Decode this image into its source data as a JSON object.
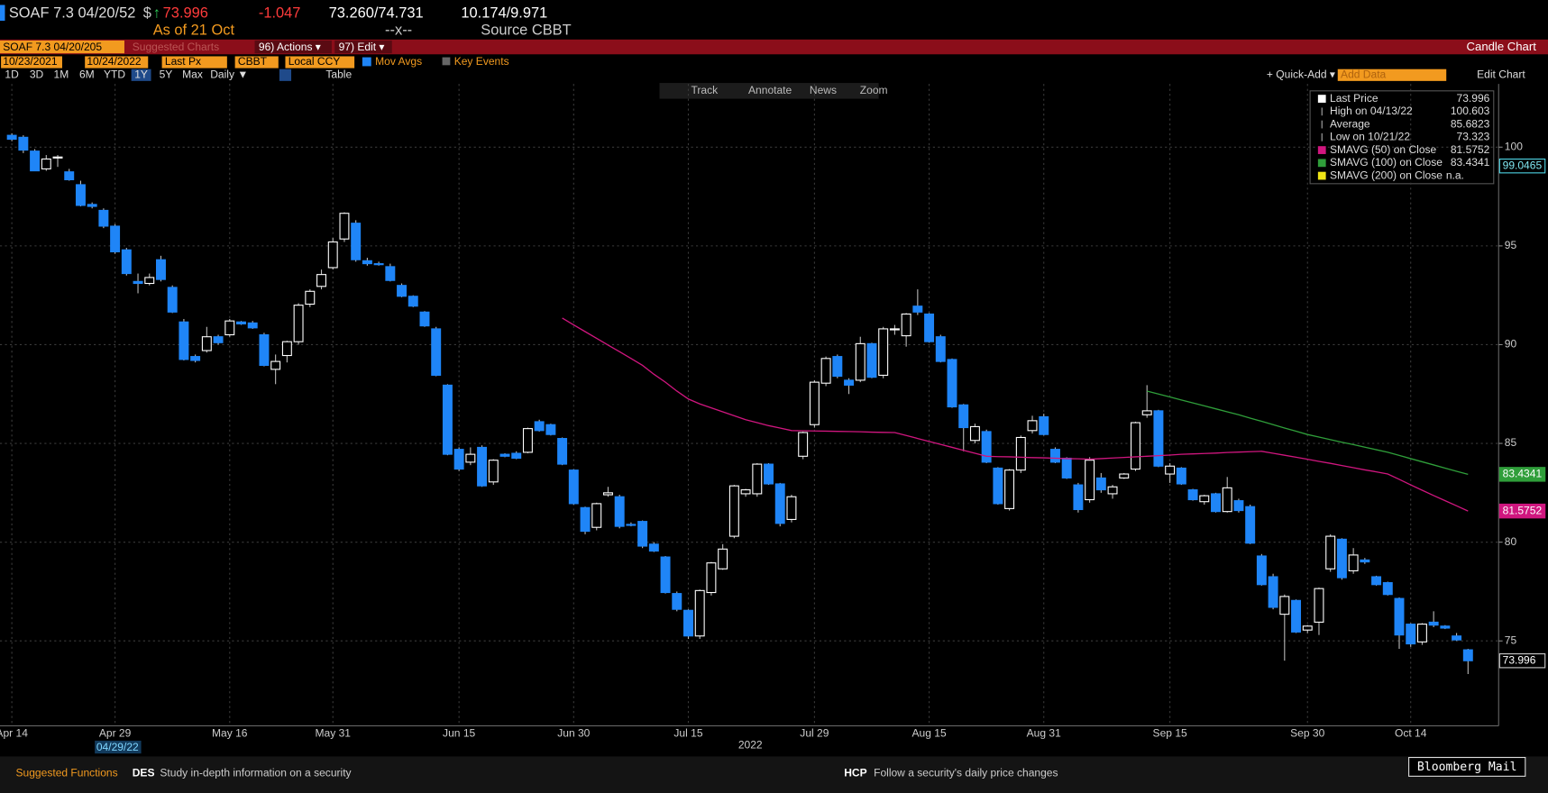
{
  "header": {
    "security": "SOAF 7.3 04/20/52",
    "currency": "$",
    "arrow": "↑",
    "last_price": 73.996,
    "change": -1.047,
    "bid_ask": "73.260/74.731",
    "yield": "10.174/9.971",
    "as_of": "As of 21 Oct",
    "mark": "--x--",
    "source": "Source CBBT"
  },
  "menu": {
    "ticker_input": "SOAF 7.3 04/20/205",
    "suggested": "Suggested Charts",
    "actions": "96) Actions ▾",
    "edit": "97) Edit ▾",
    "chart_type": "Candle Chart"
  },
  "controls": {
    "start": "10/23/2021",
    "end": "10/24/2022",
    "field": "Last Px",
    "source": "CBBT",
    "currency": "Local CCY",
    "mov_avgs": "Mov Avgs",
    "key_events": "Key Events",
    "periods": [
      "1D",
      "3D",
      "1M",
      "6M",
      "YTD",
      "1Y",
      "5Y",
      "Max"
    ],
    "selected_period": "1Y",
    "frequency": "Daily ▼",
    "table": "Table",
    "quick_add": "+ Quick-Add ▾",
    "add_data": "Add Data",
    "edit_chart": "Edit Chart",
    "tools": [
      "Track",
      "Annotate",
      "News",
      "Zoom"
    ]
  },
  "chart_data": {
    "type": "candlestick",
    "categories": [
      "Apr 14",
      null,
      null,
      null,
      null,
      null,
      null,
      null,
      null,
      "Apr 29",
      null,
      null,
      null,
      null,
      null,
      null,
      null,
      null,
      null,
      "May 16",
      null,
      null,
      null,
      null,
      null,
      null,
      null,
      null,
      "May 31",
      null,
      null,
      null,
      null,
      null,
      null,
      null,
      null,
      null,
      null,
      "Jun 15",
      null,
      null,
      null,
      null,
      null,
      null,
      null,
      null,
      null,
      "Jun 30",
      null,
      null,
      null,
      null,
      null,
      null,
      null,
      null,
      null,
      "Jul 15",
      null,
      null,
      null,
      null,
      null,
      null,
      null,
      null,
      null,
      null,
      "Jul 29",
      null,
      null,
      null,
      null,
      null,
      null,
      null,
      null,
      null,
      "Aug 15",
      null,
      null,
      null,
      null,
      null,
      null,
      null,
      null,
      null,
      "Aug 31",
      null,
      null,
      null,
      null,
      null,
      null,
      null,
      null,
      null,
      null,
      "Sep 15",
      null,
      null,
      null,
      null,
      null,
      null,
      null,
      null,
      null,
      null,
      null,
      "Sep 30",
      null,
      null,
      null,
      null,
      null,
      null,
      null,
      null,
      "Oct 14",
      null,
      null,
      null,
      null,
      null
    ],
    "ohlc": [
      [
        100.6,
        100.7,
        100.3,
        100.4
      ],
      [
        100.5,
        100.6,
        99.7,
        99.85
      ],
      [
        99.8,
        99.9,
        98.8,
        98.8
      ],
      [
        98.9,
        99.6,
        98.8,
        99.4
      ],
      [
        99.45,
        99.6,
        99.0,
        99.5
      ],
      [
        98.75,
        98.9,
        98.3,
        98.35
      ],
      [
        98.1,
        98.3,
        97.0,
        97.05
      ],
      [
        97.1,
        97.2,
        96.9,
        97.0
      ],
      [
        96.8,
        96.9,
        95.9,
        96.0
      ],
      [
        96.0,
        96.1,
        94.6,
        94.7
      ],
      [
        94.8,
        94.9,
        93.5,
        93.6
      ],
      [
        93.2,
        93.6,
        92.6,
        93.1
      ],
      [
        93.1,
        93.6,
        93.0,
        93.4
      ],
      [
        94.3,
        94.5,
        93.2,
        93.3
      ],
      [
        92.9,
        93.0,
        91.6,
        91.65
      ],
      [
        91.15,
        91.3,
        89.2,
        89.25
      ],
      [
        89.4,
        89.5,
        89.1,
        89.2
      ],
      [
        89.7,
        90.9,
        89.6,
        90.4
      ],
      [
        90.4,
        90.5,
        90.0,
        90.1
      ],
      [
        90.5,
        91.3,
        90.4,
        91.2
      ],
      [
        91.15,
        91.2,
        91.0,
        91.05
      ],
      [
        91.1,
        91.2,
        90.8,
        90.85
      ],
      [
        90.5,
        90.6,
        88.9,
        88.95
      ],
      [
        88.75,
        89.5,
        88.0,
        89.15
      ],
      [
        89.45,
        90.2,
        89.1,
        90.15
      ],
      [
        90.15,
        92.1,
        90.0,
        92.0
      ],
      [
        92.05,
        92.8,
        91.9,
        92.7
      ],
      [
        92.95,
        93.8,
        92.8,
        93.55
      ],
      [
        93.9,
        95.4,
        93.8,
        95.2
      ],
      [
        95.35,
        96.7,
        95.2,
        96.65
      ],
      [
        96.15,
        96.3,
        94.2,
        94.3
      ],
      [
        94.25,
        94.4,
        94.0,
        94.1
      ],
      [
        94.1,
        94.2,
        94.0,
        94.05
      ],
      [
        93.95,
        94.1,
        93.2,
        93.25
      ],
      [
        93.0,
        93.1,
        92.4,
        92.45
      ],
      [
        92.45,
        92.5,
        91.9,
        91.95
      ],
      [
        91.65,
        91.7,
        90.9,
        90.95
      ],
      [
        90.8,
        90.9,
        88.4,
        88.45
      ],
      [
        87.95,
        88.0,
        84.4,
        84.45
      ],
      [
        84.7,
        84.8,
        83.6,
        83.7
      ],
      [
        84.05,
        84.8,
        83.9,
        84.45
      ],
      [
        84.8,
        84.9,
        82.8,
        82.85
      ],
      [
        83.05,
        84.2,
        82.9,
        84.15
      ],
      [
        84.45,
        84.5,
        84.3,
        84.35
      ],
      [
        84.5,
        84.6,
        84.2,
        84.25
      ],
      [
        84.55,
        85.8,
        84.5,
        85.75
      ],
      [
        86.1,
        86.2,
        85.6,
        85.65
      ],
      [
        85.95,
        86.0,
        85.4,
        85.45
      ],
      [
        85.25,
        85.3,
        83.9,
        83.95
      ],
      [
        83.65,
        83.7,
        81.9,
        81.95
      ],
      [
        81.75,
        81.8,
        80.4,
        80.55
      ],
      [
        80.75,
        82.0,
        80.6,
        81.95
      ],
      [
        82.4,
        82.8,
        82.3,
        82.5
      ],
      [
        82.3,
        82.4,
        80.7,
        80.8
      ],
      [
        80.9,
        81.0,
        80.8,
        80.85
      ],
      [
        81.05,
        81.1,
        79.7,
        79.8
      ],
      [
        79.9,
        80.0,
        79.5,
        79.55
      ],
      [
        79.25,
        79.3,
        77.4,
        77.45
      ],
      [
        77.4,
        77.5,
        76.5,
        76.6
      ],
      [
        76.55,
        76.6,
        75.1,
        75.25
      ],
      [
        75.25,
        77.6,
        75.1,
        77.55
      ],
      [
        77.45,
        79.0,
        77.3,
        78.95
      ],
      [
        78.65,
        79.9,
        78.6,
        79.65
      ],
      [
        80.3,
        82.9,
        80.2,
        82.85
      ],
      [
        82.45,
        82.7,
        82.3,
        82.65
      ],
      [
        82.45,
        84.0,
        82.3,
        83.95
      ],
      [
        83.95,
        84.0,
        82.9,
        82.95
      ],
      [
        82.95,
        83.0,
        80.8,
        80.95
      ],
      [
        81.15,
        82.4,
        81.0,
        82.3
      ],
      [
        84.35,
        85.6,
        84.2,
        85.55
      ],
      [
        85.95,
        88.2,
        85.8,
        88.1
      ],
      [
        88.05,
        89.4,
        87.9,
        89.3
      ],
      [
        89.4,
        89.5,
        88.3,
        88.4
      ],
      [
        88.2,
        88.3,
        87.5,
        87.95
      ],
      [
        88.2,
        90.4,
        88.1,
        90.05
      ],
      [
        90.05,
        90.1,
        88.3,
        88.35
      ],
      [
        88.45,
        90.9,
        88.3,
        90.8
      ],
      [
        90.75,
        91.0,
        90.5,
        90.8
      ],
      [
        90.45,
        91.6,
        89.9,
        91.55
      ],
      [
        91.95,
        92.8,
        91.5,
        91.65
      ],
      [
        91.55,
        91.6,
        90.1,
        90.15
      ],
      [
        90.4,
        90.5,
        89.1,
        89.15
      ],
      [
        89.25,
        89.3,
        86.8,
        86.85
      ],
      [
        86.95,
        87.0,
        84.6,
        85.8
      ],
      [
        85.15,
        86.0,
        85.0,
        85.85
      ],
      [
        85.6,
        85.7,
        84.0,
        84.05
      ],
      [
        83.75,
        83.8,
        81.9,
        81.95
      ],
      [
        81.7,
        83.7,
        81.6,
        83.65
      ],
      [
        83.65,
        85.4,
        83.5,
        85.3
      ],
      [
        85.65,
        86.4,
        85.5,
        86.15
      ],
      [
        86.35,
        86.5,
        85.4,
        85.45
      ],
      [
        84.7,
        84.8,
        84.0,
        84.05
      ],
      [
        84.25,
        84.3,
        83.2,
        83.25
      ],
      [
        82.9,
        83.0,
        81.5,
        81.65
      ],
      [
        82.15,
        84.3,
        82.0,
        84.15
      ],
      [
        83.25,
        83.5,
        82.5,
        82.65
      ],
      [
        82.45,
        82.9,
        82.2,
        82.8
      ],
      [
        83.25,
        83.5,
        83.2,
        83.45
      ],
      [
        83.7,
        86.1,
        83.6,
        86.05
      ],
      [
        86.45,
        87.95,
        86.3,
        86.65
      ],
      [
        86.65,
        86.7,
        83.8,
        83.85
      ],
      [
        83.45,
        84.0,
        83.0,
        83.85
      ],
      [
        83.75,
        83.8,
        82.9,
        82.95
      ],
      [
        82.65,
        82.7,
        82.1,
        82.15
      ],
      [
        82.05,
        82.4,
        81.9,
        82.35
      ],
      [
        82.45,
        82.5,
        81.5,
        81.55
      ],
      [
        81.55,
        83.3,
        81.5,
        82.75
      ],
      [
        82.1,
        82.2,
        81.5,
        81.6
      ],
      [
        81.8,
        81.9,
        79.9,
        79.95
      ],
      [
        79.3,
        79.4,
        77.8,
        77.85
      ],
      [
        78.25,
        78.4,
        76.6,
        76.7
      ],
      [
        76.35,
        77.35,
        74.0,
        77.25
      ],
      [
        77.05,
        77.1,
        75.4,
        75.45
      ],
      [
        75.55,
        75.8,
        75.4,
        75.75
      ],
      [
        75.95,
        77.7,
        75.3,
        77.65
      ],
      [
        78.65,
        80.4,
        78.5,
        80.3
      ],
      [
        80.15,
        80.2,
        78.1,
        78.2
      ],
      [
        78.55,
        79.7,
        78.4,
        79.35
      ],
      [
        79.1,
        79.2,
        78.9,
        79.0
      ],
      [
        78.25,
        78.3,
        77.8,
        77.85
      ],
      [
        77.95,
        78.0,
        77.3,
        77.35
      ],
      [
        77.15,
        77.2,
        74.6,
        75.3
      ],
      [
        75.85,
        75.9,
        74.7,
        74.85
      ],
      [
        74.95,
        75.9,
        74.8,
        75.85
      ],
      [
        75.95,
        76.5,
        75.7,
        75.8
      ],
      [
        75.75,
        75.8,
        75.6,
        75.65
      ],
      [
        75.25,
        75.4,
        75.0,
        75.05
      ],
      [
        74.55,
        74.6,
        73.323,
        73.996
      ]
    ],
    "up_color": "#ffffff",
    "down_color": "#1f85f7",
    "series": [
      {
        "name": "SMAVG (50)  on Close",
        "color": "#d0167f",
        "values": [
          null,
          null,
          null,
          null,
          null,
          null,
          null,
          null,
          null,
          null,
          null,
          null,
          null,
          null,
          null,
          null,
          null,
          null,
          null,
          null,
          null,
          null,
          null,
          null,
          null,
          null,
          null,
          null,
          null,
          null,
          null,
          null,
          null,
          null,
          null,
          null,
          null,
          null,
          null,
          null,
          null,
          null,
          null,
          null,
          null,
          null,
          null,
          null,
          91.35,
          91.0,
          90.66,
          90.32,
          89.98,
          89.64,
          89.3,
          88.95,
          88.5,
          88.1,
          87.65,
          87.25,
          87.0,
          86.8,
          86.6,
          86.4,
          86.2,
          86.05,
          85.9,
          85.78,
          85.65,
          85.64,
          85.63,
          85.62,
          85.61,
          85.6,
          85.59,
          85.57,
          85.56,
          85.55,
          85.4,
          85.25,
          85.1,
          84.95,
          84.8,
          84.65,
          84.5,
          84.35,
          84.33,
          84.32,
          84.3,
          84.28,
          84.27,
          84.25,
          84.23,
          84.22,
          84.2,
          84.23,
          84.26,
          84.29,
          84.32,
          84.35,
          84.38,
          84.41,
          84.45,
          84.47,
          84.49,
          84.51,
          84.54,
          84.56,
          84.58,
          84.6,
          84.5,
          84.4,
          84.3,
          84.2,
          84.09,
          83.99,
          83.88,
          83.77,
          83.66,
          83.56,
          83.45,
          83.18,
          82.9,
          82.63,
          82.36,
          82.1,
          81.84,
          81.5752
        ]
      },
      {
        "name": "SMAVG (100)  on Close",
        "color": "#2f9e3a",
        "values": [
          null,
          null,
          null,
          null,
          null,
          null,
          null,
          null,
          null,
          null,
          null,
          null,
          null,
          null,
          null,
          null,
          null,
          null,
          null,
          null,
          null,
          null,
          null,
          null,
          null,
          null,
          null,
          null,
          null,
          null,
          null,
          null,
          null,
          null,
          null,
          null,
          null,
          null,
          null,
          null,
          null,
          null,
          null,
          null,
          null,
          null,
          null,
          null,
          null,
          null,
          null,
          null,
          null,
          null,
          null,
          null,
          null,
          null,
          null,
          null,
          null,
          null,
          null,
          null,
          null,
          null,
          null,
          null,
          null,
          null,
          null,
          null,
          null,
          null,
          null,
          null,
          null,
          null,
          null,
          null,
          null,
          null,
          null,
          null,
          null,
          null,
          null,
          null,
          null,
          null,
          null,
          null,
          null,
          null,
          null,
          null,
          null,
          null,
          null,
          87.65,
          87.5,
          87.35,
          87.2,
          87.05,
          86.9,
          86.75,
          86.6,
          86.45,
          86.28,
          86.12,
          85.95,
          85.78,
          85.62,
          85.45,
          85.32,
          85.19,
          85.06,
          84.94,
          84.81,
          84.68,
          84.55,
          84.39,
          84.23,
          84.07,
          83.91,
          83.75,
          83.59,
          83.4341
        ]
      }
    ],
    "ylim": [
      70.7,
      103.2
    ],
    "yticks": [
      75,
      80,
      85,
      90,
      95,
      100
    ],
    "grid": true,
    "year_label": "2022",
    "cursor_date": "04/29/22",
    "cursor_value": 99.0465,
    "legend": {
      "rows": [
        {
          "label": "Last Price",
          "value": 73.996
        },
        {
          "label": "High on 04/13/22",
          "value": 100.603
        },
        {
          "label": "Average",
          "value": 85.6823
        },
        {
          "label": "Low on 10/21/22",
          "value": 73.323
        }
      ],
      "extra": {
        "name": "SMAVG (200)  on Close",
        "color": "#f0e516",
        "value": "n.a."
      }
    }
  },
  "footer": {
    "suggested": "Suggested Functions",
    "f1_code": "DES",
    "f1_text": "Study in-depth information on a security",
    "f2_code": "HCP",
    "f2_text": "Follow a security's daily price changes",
    "mail": "Bloomberg Mail"
  }
}
